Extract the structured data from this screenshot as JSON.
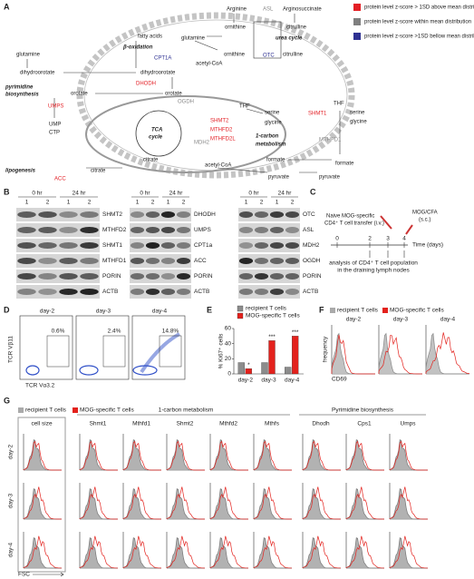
{
  "figure": {
    "panel_a": {
      "label": "A",
      "legend": [
        {
          "text": "protein level z-score > 1SD above mean distribution",
          "color": "#e31e24"
        },
        {
          "text": "protein level z-score within mean distribution",
          "color": "#7f7f7f"
        },
        {
          "text": "protein level z-score >1SD bellow mean distribution",
          "color": "#2e3192"
        }
      ],
      "texts": [
        "Arginine",
        "ASL",
        "Arginosuccinate",
        "ornithine",
        "citrulline",
        "urea cycle",
        "glutamine",
        "ornithine",
        "OTC",
        "citrulline",
        "fatty acids",
        "β-oxidation",
        "CPT1A",
        "acetyl-CoA",
        "glutamine",
        "dihydroorotate",
        "dihydroorotate",
        "pyrimidine",
        "biosynthesis",
        "DHODH",
        "orotate",
        "orotate",
        "UMPS",
        "OGDH",
        "TCA",
        "cycle",
        "MDH2",
        "UMP",
        "CTP",
        "citrate",
        "lipogenesis",
        "citrate",
        "ACC",
        "acetyl-CoA",
        "pyruvate",
        "pyruvate",
        "THF",
        "serine",
        "glycine",
        "SHMT2",
        "MTHFD2",
        "MTHFD2L",
        "1-carbon",
        "metabolism",
        "formate",
        "THF",
        "serine",
        "glycine",
        "SHMT1",
        "MTHFD1",
        "formate"
      ]
    },
    "panel_b": {
      "label": "B",
      "timepoints": [
        "0 hr",
        "24 hr"
      ],
      "lanes": [
        "1",
        "2",
        "1",
        "2"
      ],
      "groups": [
        [
          "SHMT2",
          "MTHFD2",
          "SHMT1",
          "MTHFD1",
          "PORIN",
          "ACTB"
        ],
        [
          "DHODH",
          "UMPS",
          "CPT1a",
          "ACC",
          "PORIN",
          "ACTB"
        ],
        [
          "OTC",
          "ASL",
          "MDH2",
          "OGDH",
          "PORIN",
          "ACTB"
        ]
      ]
    },
    "panel_c": {
      "label": "C",
      "transfer": [
        "Naive MOG-specific",
        "CD4⁺ T cell transfer (i.v.)"
      ],
      "immunization": [
        "MOG/CFA",
        "(s.c.)"
      ],
      "timeline_ticks": [
        0,
        2,
        3,
        4
      ],
      "time_label": "Time (days)",
      "analysis": [
        "analysis of CD4⁺ T cell population",
        "in the  draining lymph nodes"
      ]
    },
    "panel_d": {
      "label": "D",
      "days": [
        "day-2",
        "day-3",
        "day-4"
      ],
      "percentages": [
        "0.6%",
        "2.4%",
        "14.8%"
      ],
      "y_label": "TCR Vβ11",
      "x_label": "TCR Vα3.2"
    },
    "panel_e": {
      "label": "E",
      "chart_data": {
        "type": "bar",
        "y_label": "% Ki67⁺ cells",
        "categories": [
          "day-2",
          "day-3",
          "day-4"
        ],
        "series": [
          {
            "name": "recipient  T cells",
            "color": "#8c8c8c",
            "values": [
              15,
              15,
              9
            ]
          },
          {
            "name": "MOG-specific T cells",
            "color": "#e3211c",
            "values": [
              7,
              44,
              50
            ]
          }
        ],
        "significance": [
          "*",
          "***",
          "***"
        ],
        "ylim": [
          0,
          60
        ],
        "yticks": [
          0,
          20,
          40,
          60
        ]
      }
    },
    "panel_f": {
      "label": "F",
      "legend": [
        "recipient T cells",
        "MOG-specific T cells"
      ],
      "days": [
        "day-2",
        "day-3",
        "day-4"
      ],
      "y_label": "frequency",
      "x_label": "CD69"
    },
    "panel_g": {
      "label": "G",
      "legend": [
        "recipient T cells",
        "MOG-specific T cells"
      ],
      "groups": [
        "1-carbon metabolism",
        "Pyrimidine biosynthesis"
      ],
      "columns": [
        "cell size",
        "Shmt1",
        "Mthfd1",
        "Shmt2",
        "Mthfd2",
        "Mthfs",
        "Dhodh",
        "Cps1",
        "Umps"
      ],
      "rows": [
        "day-2",
        "day-3",
        "day-4"
      ],
      "x_label": "FSC"
    }
  }
}
